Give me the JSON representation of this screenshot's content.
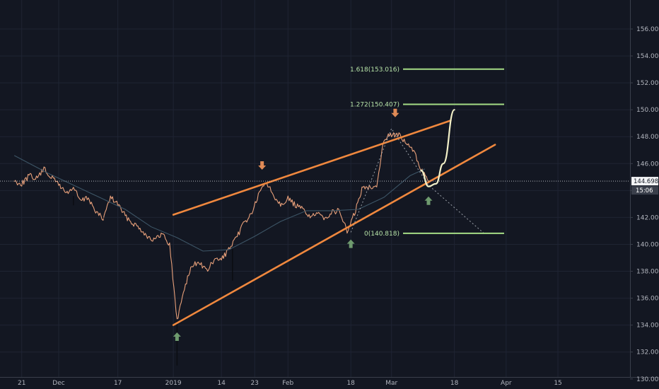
{
  "chart_data": {
    "type": "line",
    "title": "",
    "xlabel": "",
    "ylabel": "",
    "ylim": [
      129.6,
      156.9
    ],
    "y_ticks": [
      "130.000",
      "132.000",
      "134.000",
      "136.000",
      "138.000",
      "140.000",
      "142.000",
      "144.000",
      "146.000",
      "148.000",
      "150.000",
      "152.000",
      "154.000",
      "156.000"
    ],
    "x_ticks": [
      {
        "label": "21",
        "date": "2018-11-21"
      },
      {
        "label": "Dec",
        "date": "2018-12-01"
      },
      {
        "label": "17",
        "date": "2018-12-17"
      },
      {
        "label": "2019",
        "date": "2019-01-01"
      },
      {
        "label": "14",
        "date": "2019-01-14"
      },
      {
        "label": "23",
        "date": "2019-01-23"
      },
      {
        "label": "Feb",
        "date": "2019-02-01"
      },
      {
        "label": "18",
        "date": "2019-02-18"
      },
      {
        "label": "Mar",
        "date": "2019-03-01"
      },
      {
        "label": "18",
        "date": "2019-03-18"
      },
      {
        "label": "Apr",
        "date": "2019-04-01"
      },
      {
        "label": "15",
        "date": "2019-04-15"
      }
    ],
    "grid": true,
    "series": [
      {
        "color": "#e8a07a",
        "points": [
          [
            "2018-11-19",
            144.7
          ],
          [
            "2018-11-21",
            144.5
          ],
          [
            "2018-11-23",
            145.1
          ],
          [
            "2018-11-25",
            144.9
          ],
          [
            "2018-11-27",
            145.6
          ],
          [
            "2018-11-29",
            145.0
          ],
          [
            "2018-12-01",
            144.5
          ],
          [
            "2018-12-03",
            143.8
          ],
          [
            "2018-12-05",
            144.2
          ],
          [
            "2018-12-07",
            143.2
          ],
          [
            "2018-12-09",
            143.5
          ],
          [
            "2018-12-11",
            142.4
          ],
          [
            "2018-12-13",
            141.9
          ],
          [
            "2018-12-15",
            143.5
          ],
          [
            "2018-12-17",
            143.0
          ],
          [
            "2018-12-19",
            142.1
          ],
          [
            "2018-12-21",
            141.6
          ],
          [
            "2018-12-23",
            141.2
          ],
          [
            "2018-12-25",
            140.6
          ],
          [
            "2018-12-27",
            140.3
          ],
          [
            "2018-12-29",
            140.8
          ],
          [
            "2018-12-31",
            140.0
          ],
          [
            "2019-01-02",
            134.3
          ],
          [
            "2019-01-04",
            136.8
          ],
          [
            "2019-01-06",
            138.4
          ],
          [
            "2019-01-08",
            138.7
          ],
          [
            "2019-01-10",
            138.0
          ],
          [
            "2019-01-12",
            138.8
          ],
          [
            "2019-01-14",
            138.9
          ],
          [
            "2019-01-16",
            139.6
          ],
          [
            "2019-01-18",
            140.4
          ],
          [
            "2019-01-20",
            141.6
          ],
          [
            "2019-01-22",
            142.2
          ],
          [
            "2019-01-24",
            143.6
          ],
          [
            "2019-01-26",
            144.7
          ],
          [
            "2019-01-28",
            143.7
          ],
          [
            "2019-01-30",
            143.0
          ],
          [
            "2019-02-01",
            143.4
          ],
          [
            "2019-02-03",
            142.9
          ],
          [
            "2019-02-05",
            142.6
          ],
          [
            "2019-02-07",
            142.1
          ],
          [
            "2019-02-09",
            142.2
          ],
          [
            "2019-02-11",
            142.0
          ],
          [
            "2019-02-13",
            142.4
          ],
          [
            "2019-02-15",
            142.5
          ],
          [
            "2019-02-17",
            140.9
          ],
          [
            "2019-02-19",
            142.3
          ],
          [
            "2019-02-21",
            144.1
          ],
          [
            "2019-02-23",
            144.3
          ],
          [
            "2019-02-25",
            144.4
          ],
          [
            "2019-02-27",
            147.9
          ],
          [
            "2019-03-01",
            148.2
          ],
          [
            "2019-03-03",
            148.1
          ],
          [
            "2019-03-05",
            147.5
          ],
          [
            "2019-03-07",
            146.9
          ],
          [
            "2019-03-09",
            145.6
          ],
          [
            "2019-03-11",
            144.7
          ]
        ]
      },
      {
        "color": "#3d5566",
        "points": [
          [
            "2018-11-19",
            146.6
          ],
          [
            "2018-11-28",
            145.3
          ],
          [
            "2018-12-05",
            144.4
          ],
          [
            "2018-12-12",
            143.5
          ],
          [
            "2018-12-19",
            142.6
          ],
          [
            "2018-12-26",
            141.3
          ],
          [
            "2019-01-02",
            140.5
          ],
          [
            "2019-01-09",
            139.5
          ],
          [
            "2019-01-16",
            139.6
          ],
          [
            "2019-01-23",
            140.6
          ],
          [
            "2019-01-30",
            141.7
          ],
          [
            "2019-02-06",
            142.5
          ],
          [
            "2019-02-13",
            142.5
          ],
          [
            "2019-02-20",
            142.6
          ],
          [
            "2019-02-27",
            143.5
          ],
          [
            "2019-03-06",
            145.1
          ],
          [
            "2019-03-10",
            145.6
          ]
        ]
      }
    ],
    "channel": {
      "upper": [
        [
          "2019-01-01",
          142.2
        ],
        [
          "2019-03-17",
          149.2
        ]
      ],
      "lower": [
        [
          "2019-01-01",
          134.0
        ],
        [
          "2019-03-29",
          147.4
        ]
      ],
      "color": "#f0883e"
    },
    "projection": {
      "curve": [
        [
          "2019-03-09",
          145.5
        ],
        [
          "2019-03-11",
          144.3
        ],
        [
          "2019-03-13",
          144.5
        ],
        [
          "2019-03-15",
          146.0
        ],
        [
          "2019-03-18",
          150.0
        ]
      ],
      "dotted": [
        [
          "2019-02-18",
          140.9
        ],
        [
          "2019-03-01",
          148.6
        ],
        [
          "2019-03-11",
          144.4
        ],
        [
          "2019-03-26",
          140.818
        ]
      ]
    },
    "fibonacci": [
      {
        "label": "1.618(153.016)",
        "level": 153.016
      },
      {
        "label": "1.272(150.407)",
        "level": 150.407
      },
      {
        "label": "0(140.818)",
        "level": 140.818
      }
    ],
    "annotations": [
      {
        "kind": "arrow-down",
        "color": "#e08a56",
        "date": "2019-01-25",
        "price": 145.7
      },
      {
        "kind": "arrow-down",
        "color": "#e08a56",
        "date": "2019-03-02",
        "price": 149.6
      },
      {
        "kind": "arrow-up",
        "color": "#6e9a6e",
        "date": "2019-01-02",
        "price": 133.3
      },
      {
        "kind": "arrow-up",
        "color": "#6e9a6e",
        "date": "2019-02-18",
        "price": 140.2
      },
      {
        "kind": "arrow-up",
        "color": "#6e9a6e",
        "date": "2019-03-11",
        "price": 143.4
      }
    ],
    "price_line": {
      "value": 144.698,
      "label": "144.698"
    },
    "countdown": {
      "label": "15:06"
    }
  }
}
